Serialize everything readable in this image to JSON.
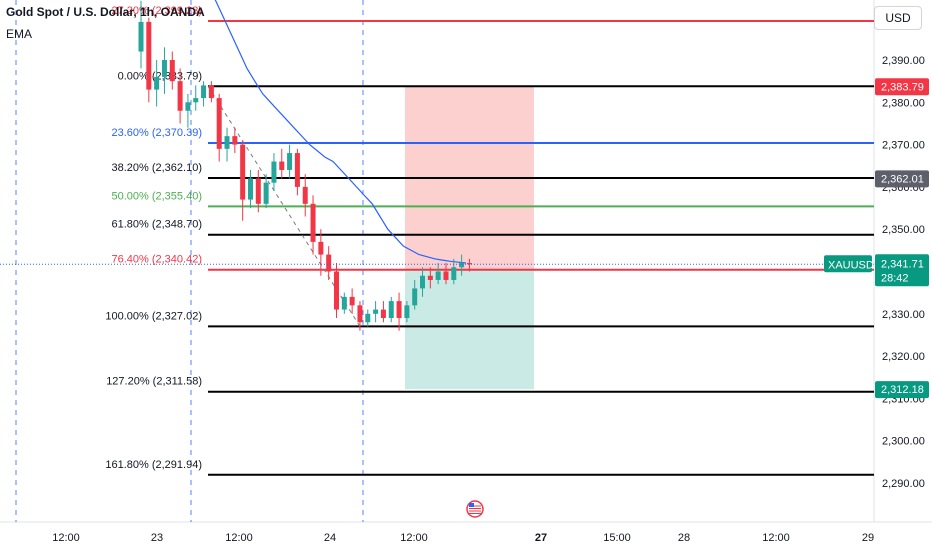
{
  "header": {
    "symbol_title": "Gold Spot / U.S. Dollar, 1h, OANDA",
    "indicator": "EMA",
    "currency_button": "USD"
  },
  "colors": {
    "up": "#26a69a",
    "down": "#f23645",
    "ema": "#2962ff",
    "fib_black": "#000000",
    "fib_blue": "#2962ff",
    "fib_green": "#4caf50",
    "fib_red": "#f23645",
    "stop_zone": "#f7a9a8",
    "target_zone": "#9fd9d1"
  },
  "price_axis": {
    "tick_labels": [
      "2,390.00",
      "2,380.00",
      "2,370.00",
      "2,360.00",
      "2,350.00",
      "2,340.00",
      "2,330.00",
      "2,320.00",
      "2,310.00",
      "2,300.00",
      "2,290.00"
    ],
    "badges": [
      {
        "text": "2,383.79",
        "color": "#f23645",
        "value": 2383.79
      },
      {
        "text": "2,362.01",
        "color": "#5d606b",
        "value": 2362.01
      },
      {
        "text": "2,312.18",
        "color": "#089981",
        "value": 2312.18
      }
    ],
    "current": {
      "symbol": "XAUUSD",
      "price": "2,341.71",
      "countdown": "28:42",
      "value": 2341.71
    }
  },
  "time_axis": {
    "labels": [
      "12:00",
      "23",
      "12:00",
      "24",
      "12:00",
      "27",
      "15:00",
      "28",
      "12:00",
      "29"
    ]
  },
  "chart_data": {
    "type": "candlestick",
    "title": "Gold Spot / U.S. Dollar, 1h, OANDA",
    "ylim": [
      2284,
      2404
    ],
    "fib_levels": [
      {
        "label": "27.20% (2,399.23)",
        "value": 2399.23,
        "color": "#f23645"
      },
      {
        "label": "0.00% (2,383.79)",
        "value": 2383.79,
        "color": "#000000"
      },
      {
        "label": "23.60% (2,370.39)",
        "value": 2370.39,
        "color": "#2962ff"
      },
      {
        "label": "38.20% (2,362.10)",
        "value": 2362.1,
        "color": "#000000"
      },
      {
        "label": "50.00% (2,355.40)",
        "value": 2355.4,
        "color": "#4caf50"
      },
      {
        "label": "61.80% (2,348.70)",
        "value": 2348.7,
        "color": "#000000"
      },
      {
        "label": "76.40% (2,340.42)",
        "value": 2340.42,
        "color": "#f23645"
      },
      {
        "label": "100.00% (2,327.02)",
        "value": 2327.02,
        "color": "#000000"
      },
      {
        "label": "127.20% (2,311.58)",
        "value": 2311.58,
        "color": "#000000"
      },
      {
        "label": "161.80% (2,291.94)",
        "value": 2291.94,
        "color": "#000000"
      }
    ],
    "position": {
      "entry": 2340.42,
      "stop": 2383.79,
      "target": 2312.18
    },
    "candles": [
      {
        "o": 2392,
        "h": 2404,
        "l": 2388,
        "c": 2399
      },
      {
        "o": 2399,
        "h": 2400,
        "l": 2380,
        "c": 2383
      },
      {
        "o": 2383,
        "h": 2390,
        "l": 2379,
        "c": 2386
      },
      {
        "o": 2386,
        "h": 2393,
        "l": 2382,
        "c": 2390
      },
      {
        "o": 2390,
        "h": 2392,
        "l": 2383,
        "c": 2385
      },
      {
        "o": 2385,
        "h": 2388,
        "l": 2375,
        "c": 2378
      },
      {
        "o": 2378,
        "h": 2382,
        "l": 2374,
        "c": 2380
      },
      {
        "o": 2380,
        "h": 2384,
        "l": 2378,
        "c": 2381
      },
      {
        "o": 2381,
        "h": 2385,
        "l": 2379,
        "c": 2384
      },
      {
        "o": 2384,
        "h": 2385,
        "l": 2380,
        "c": 2381
      },
      {
        "o": 2381,
        "h": 2382,
        "l": 2366,
        "c": 2369
      },
      {
        "o": 2369,
        "h": 2374,
        "l": 2366,
        "c": 2372
      },
      {
        "o": 2372,
        "h": 2374,
        "l": 2368,
        "c": 2370
      },
      {
        "o": 2370,
        "h": 2371,
        "l": 2352,
        "c": 2357
      },
      {
        "o": 2357,
        "h": 2364,
        "l": 2355,
        "c": 2362
      },
      {
        "o": 2362,
        "h": 2364,
        "l": 2354,
        "c": 2356
      },
      {
        "o": 2356,
        "h": 2363,
        "l": 2355,
        "c": 2361
      },
      {
        "o": 2361,
        "h": 2368,
        "l": 2359,
        "c": 2366
      },
      {
        "o": 2366,
        "h": 2369,
        "l": 2362,
        "c": 2364
      },
      {
        "o": 2364,
        "h": 2370,
        "l": 2362,
        "c": 2368
      },
      {
        "o": 2368,
        "h": 2369,
        "l": 2358,
        "c": 2360
      },
      {
        "o": 2360,
        "h": 2363,
        "l": 2353,
        "c": 2356
      },
      {
        "o": 2356,
        "h": 2358,
        "l": 2344,
        "c": 2347
      },
      {
        "o": 2347,
        "h": 2350,
        "l": 2339,
        "c": 2344
      },
      {
        "o": 2344,
        "h": 2346,
        "l": 2338,
        "c": 2340
      },
      {
        "o": 2340,
        "h": 2342,
        "l": 2329,
        "c": 2331
      },
      {
        "o": 2331,
        "h": 2335,
        "l": 2330,
        "c": 2334
      },
      {
        "o": 2334,
        "h": 2336,
        "l": 2330,
        "c": 2332
      },
      {
        "o": 2332,
        "h": 2333,
        "l": 2326,
        "c": 2328
      },
      {
        "o": 2328,
        "h": 2331,
        "l": 2327,
        "c": 2330
      },
      {
        "o": 2330,
        "h": 2333,
        "l": 2328,
        "c": 2331
      },
      {
        "o": 2331,
        "h": 2333,
        "l": 2328,
        "c": 2329
      },
      {
        "o": 2329,
        "h": 2334,
        "l": 2328,
        "c": 2333
      },
      {
        "o": 2333,
        "h": 2335,
        "l": 2326,
        "c": 2329
      },
      {
        "o": 2329,
        "h": 2333,
        "l": 2328,
        "c": 2332
      },
      {
        "o": 2332,
        "h": 2338,
        "l": 2331,
        "c": 2336
      },
      {
        "o": 2336,
        "h": 2341,
        "l": 2334,
        "c": 2339
      },
      {
        "o": 2339,
        "h": 2341,
        "l": 2336,
        "c": 2338
      },
      {
        "o": 2338,
        "h": 2342,
        "l": 2337,
        "c": 2340
      },
      {
        "o": 2340,
        "h": 2342,
        "l": 2337,
        "c": 2338
      },
      {
        "o": 2338,
        "h": 2343,
        "l": 2337,
        "c": 2341
      },
      {
        "o": 2341,
        "h": 2344,
        "l": 2339,
        "c": 2342
      },
      {
        "o": 2342,
        "h": 2343,
        "l": 2340,
        "c": 2341.71
      }
    ],
    "ema": [
      2408,
      2404,
      2400,
      2396,
      2392,
      2388,
      2385,
      2382,
      2380,
      2378,
      2376,
      2374,
      2372,
      2370,
      2368.5,
      2367,
      2366,
      2364,
      2362,
      2360,
      2358,
      2356,
      2353,
      2350,
      2348,
      2346,
      2345,
      2344,
      2343.5,
      2343,
      2342.7,
      2342.4,
      2342.2,
      2342
    ]
  },
  "event_icon": "us-flag-event-icon"
}
